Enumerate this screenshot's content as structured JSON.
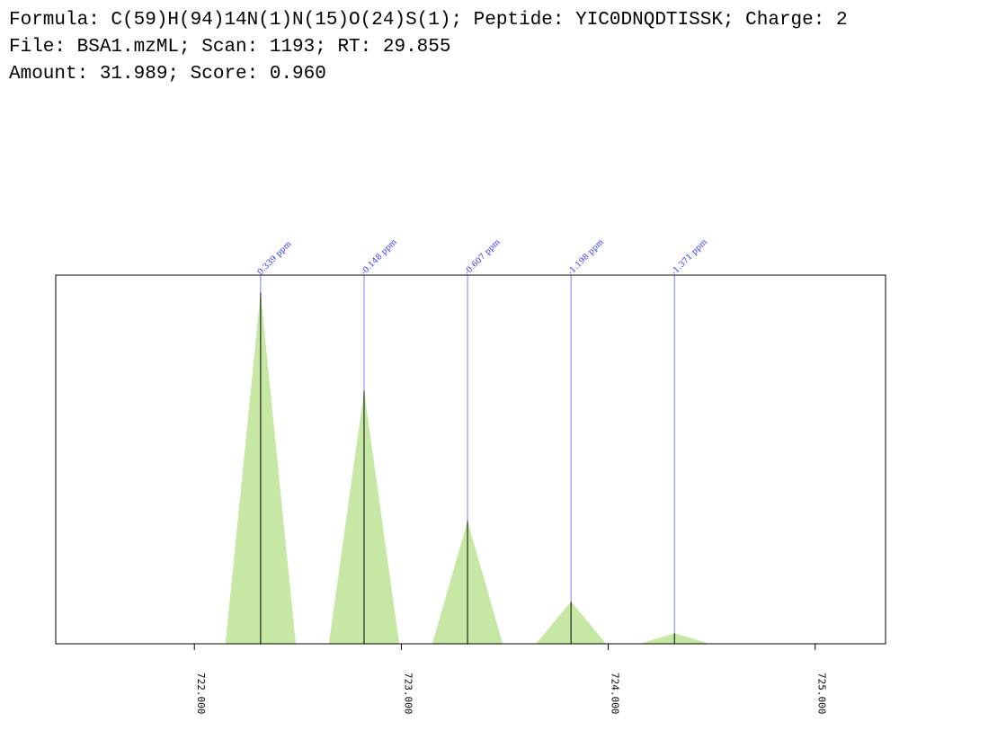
{
  "header": {
    "line1": "Formula: C(59)H(94)14N(1)N(15)O(24)S(1); Peptide: YIC0DNQDTISSK; Charge: 2",
    "line2": "File: BSA1.mzML; Scan: 1193; RT: 29.855",
    "line3": "Amount: 31.989; Score: 0.960"
  },
  "colors": {
    "fill": "#c6e8a4",
    "stick": "#000000",
    "ref_line": "#7a7aff",
    "ppm_text": "#3333ff",
    "axis": "#000000"
  },
  "chart_data": {
    "type": "bar",
    "title": "",
    "xlabel": "",
    "ylabel": "",
    "xlim": [
      721.33,
      725.34
    ],
    "ylim": [
      0,
      1.05
    ],
    "grid": false,
    "x_ticks": [
      722.0,
      723.0,
      724.0,
      725.0
    ],
    "x_tick_labels": [
      "722.000",
      "723.000",
      "724.000",
      "725.000"
    ],
    "peaks": [
      {
        "mz": 722.32,
        "intensity": 1.0,
        "ppm_label": "0.339 ppm"
      },
      {
        "mz": 722.82,
        "intensity": 0.72,
        "ppm_label": "-0.148 ppm"
      },
      {
        "mz": 723.32,
        "intensity": 0.35,
        "ppm_label": "-0.607 ppm"
      },
      {
        "mz": 723.82,
        "intensity": 0.12,
        "ppm_label": "-1.198 ppm"
      },
      {
        "mz": 724.32,
        "intensity": 0.03,
        "ppm_label": "-1.371 ppm"
      }
    ],
    "peak_halfwidth_mz": 0.17
  }
}
